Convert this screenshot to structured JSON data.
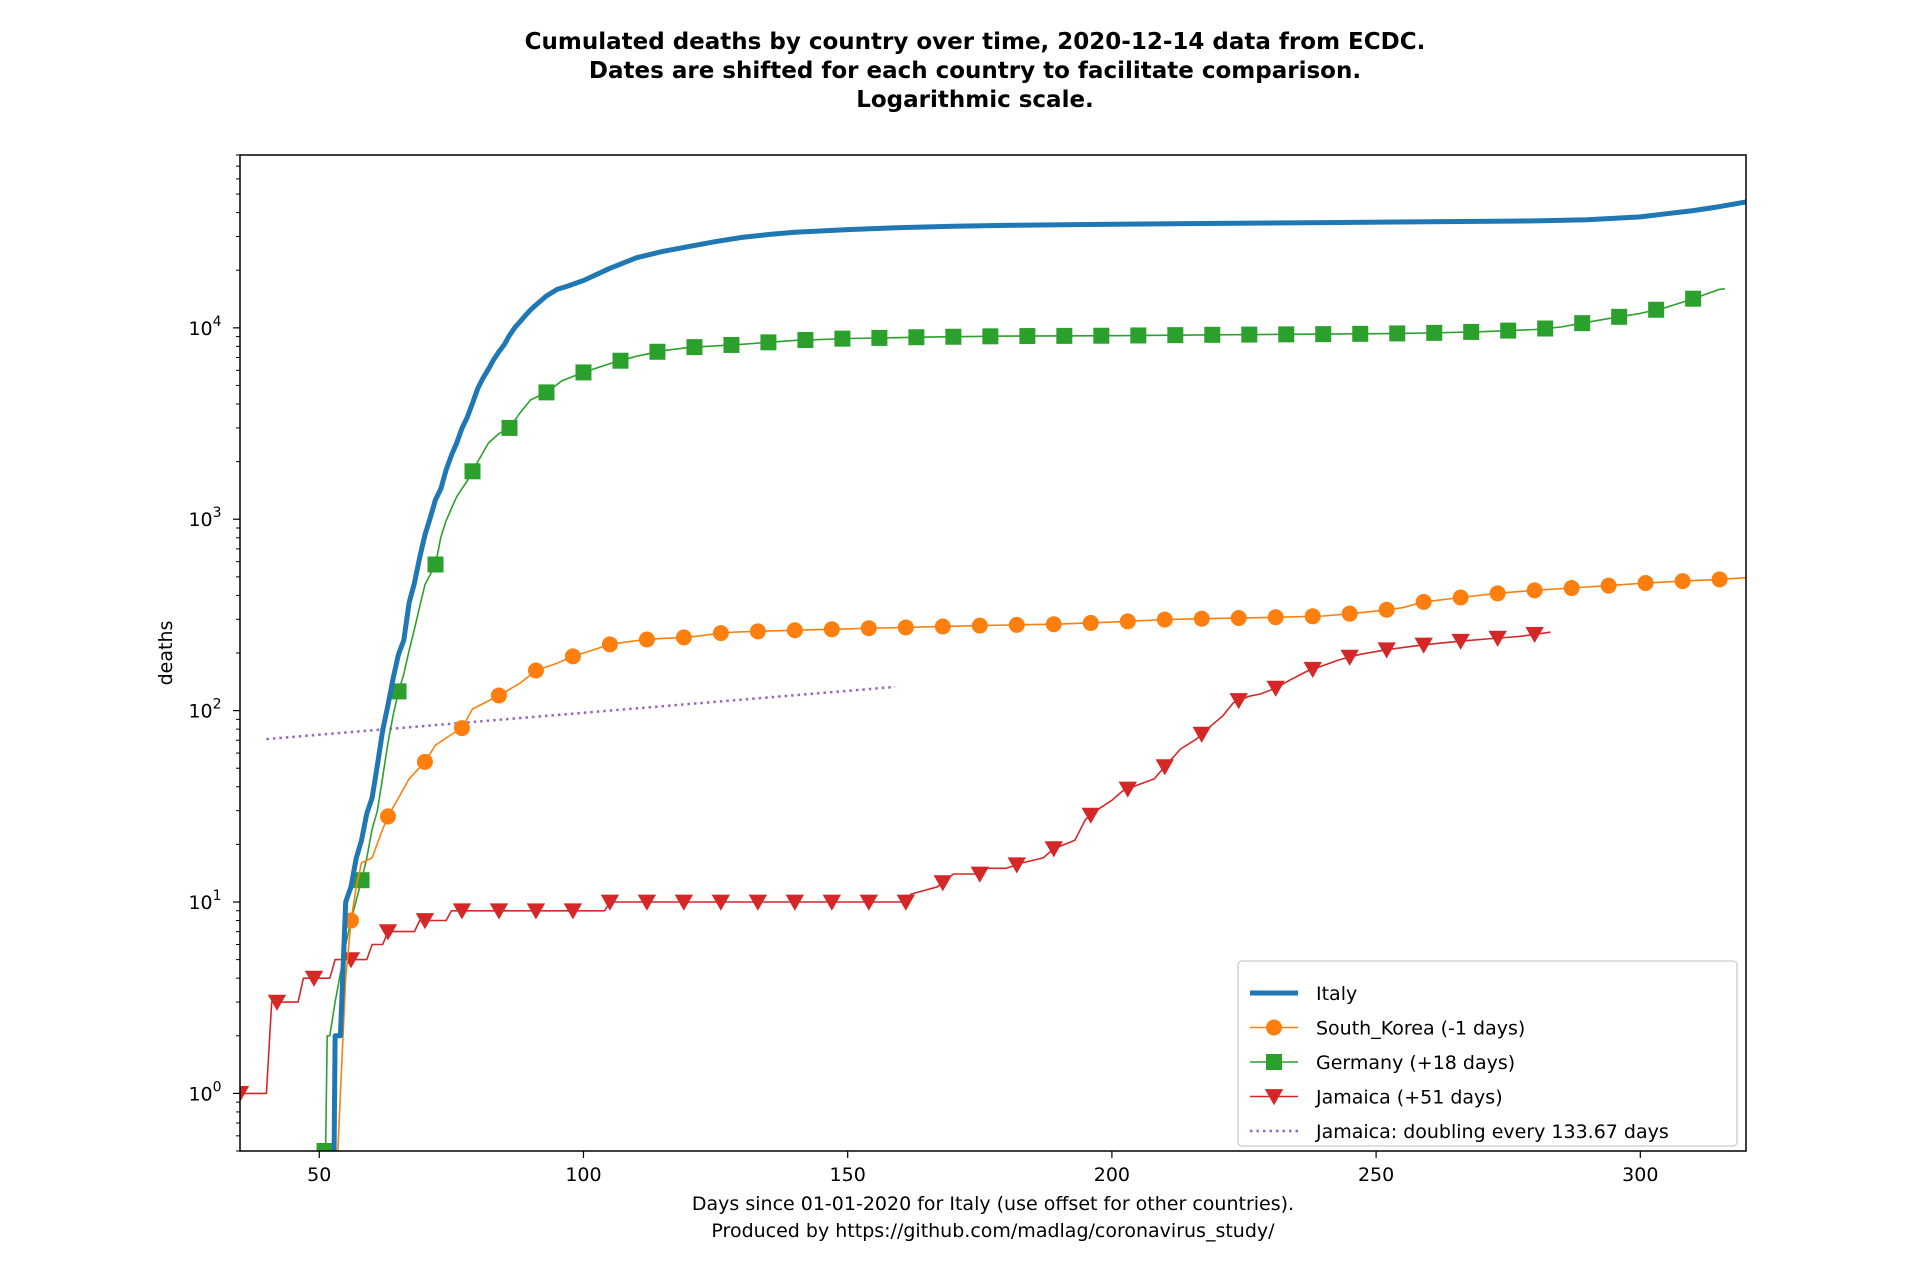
{
  "chart_data": {
    "type": "line",
    "title_lines": [
      "Cumulated deaths by country over time, 2020-12-14 data from ECDC.",
      "Dates are shifted for each country to facilitate comparison.",
      "Logarithmic scale."
    ],
    "xlabel_lines": [
      "Days since 01-01-2020 for Italy (use offset for other countries).",
      "Produced by https://github.com/madlag/coronavirus_study/"
    ],
    "ylabel": "deaths",
    "y_scale": "log",
    "xlim": [
      35,
      320
    ],
    "ylim": [
      0.5,
      80000
    ],
    "x_ticks": [
      50,
      100,
      150,
      200,
      250,
      300
    ],
    "y_ticks": [
      {
        "value": 1,
        "base": "10",
        "exp": "0"
      },
      {
        "value": 10,
        "base": "10",
        "exp": "1"
      },
      {
        "value": 100,
        "base": "10",
        "exp": "2"
      },
      {
        "value": 1000,
        "base": "10",
        "exp": "3"
      },
      {
        "value": 10000,
        "base": "10",
        "exp": "4"
      }
    ],
    "grid": false,
    "legend_position": "lower-right",
    "series": [
      {
        "name": "Italy",
        "color": "#1f77b4",
        "style": "thick-line",
        "marker": "none",
        "points": [
          [
            52.8,
            0.5
          ],
          [
            53,
            2
          ],
          [
            54,
            2
          ],
          [
            55,
            10
          ],
          [
            56,
            12
          ],
          [
            57,
            17
          ],
          [
            58,
            21
          ],
          [
            59,
            29
          ],
          [
            60,
            35
          ],
          [
            61,
            52
          ],
          [
            62,
            79
          ],
          [
            63,
            107
          ],
          [
            64,
            148
          ],
          [
            65,
            197
          ],
          [
            66,
            233
          ],
          [
            67,
            366
          ],
          [
            68,
            463
          ],
          [
            69,
            631
          ],
          [
            70,
            827
          ],
          [
            71,
            1016
          ],
          [
            72,
            1266
          ],
          [
            73,
            1441
          ],
          [
            74,
            1809
          ],
          [
            75,
            2158
          ],
          [
            76,
            2503
          ],
          [
            77,
            2978
          ],
          [
            78,
            3405
          ],
          [
            79,
            4032
          ],
          [
            80,
            4825
          ],
          [
            81,
            5476
          ],
          [
            82,
            6077
          ],
          [
            83,
            6820
          ],
          [
            84,
            7503
          ],
          [
            85,
            8165
          ],
          [
            86,
            9134
          ],
          [
            87,
            10023
          ],
          [
            88,
            10779
          ],
          [
            89,
            11591
          ],
          [
            90,
            12428
          ],
          [
            91,
            13155
          ],
          [
            93,
            14681
          ],
          [
            95,
            15887
          ],
          [
            97,
            16523
          ],
          [
            100,
            17669
          ],
          [
            105,
            20465
          ],
          [
            110,
            23227
          ],
          [
            115,
            25085
          ],
          [
            120,
            26644
          ],
          [
            125,
            28236
          ],
          [
            130,
            29684
          ],
          [
            135,
            30739
          ],
          [
            140,
            31610
          ],
          [
            150,
            32616
          ],
          [
            160,
            33415
          ],
          [
            170,
            33964
          ],
          [
            180,
            34301
          ],
          [
            200,
            34744
          ],
          [
            220,
            35141
          ],
          [
            240,
            35470
          ],
          [
            260,
            35800
          ],
          [
            280,
            36200
          ],
          [
            290,
            36700
          ],
          [
            300,
            38000
          ],
          [
            305,
            39500
          ],
          [
            310,
            41000
          ],
          [
            315,
            43000
          ],
          [
            320,
            45500
          ]
        ]
      },
      {
        "name": "South_Korea (-1 days)",
        "color": "#ff7f0e",
        "style": "line",
        "marker": "circle",
        "points": [
          [
            53.5,
            0.5
          ],
          [
            54,
            1
          ],
          [
            55,
            4
          ],
          [
            56,
            8
          ],
          [
            57,
            12
          ],
          [
            58,
            16
          ],
          [
            60,
            17
          ],
          [
            62,
            24
          ],
          [
            63,
            28
          ],
          [
            65,
            35
          ],
          [
            67,
            44
          ],
          [
            70,
            54
          ],
          [
            72,
            66
          ],
          [
            75,
            75
          ],
          [
            77,
            81
          ],
          [
            79,
            102
          ],
          [
            84,
            120
          ],
          [
            88,
            139
          ],
          [
            91,
            162
          ],
          [
            95,
            177
          ],
          [
            98,
            192
          ],
          [
            102,
            208
          ],
          [
            105,
            222
          ],
          [
            110,
            232
          ],
          [
            113,
            237
          ],
          [
            120,
            242
          ],
          [
            125,
            252
          ],
          [
            127,
            256
          ],
          [
            130,
            258
          ],
          [
            134,
            260
          ],
          [
            140,
            263
          ],
          [
            147,
            266
          ],
          [
            155,
            270
          ],
          [
            161,
            272
          ],
          [
            170,
            276
          ],
          [
            180,
            280
          ],
          [
            190,
            283
          ],
          [
            200,
            290
          ],
          [
            210,
            299
          ],
          [
            217,
            302
          ],
          [
            225,
            305
          ],
          [
            230,
            307
          ],
          [
            240,
            312
          ],
          [
            245,
            321
          ],
          [
            250,
            331
          ],
          [
            255,
            345
          ],
          [
            259,
            370
          ],
          [
            266,
            390
          ],
          [
            273,
            410
          ],
          [
            280,
            425
          ],
          [
            287,
            437
          ],
          [
            294,
            450
          ],
          [
            301,
            464
          ],
          [
            308,
            475
          ],
          [
            315,
            485
          ],
          [
            320,
            495
          ]
        ],
        "marker_x": [
          56,
          63,
          70,
          77,
          84,
          91,
          98,
          105,
          112,
          119,
          126,
          133,
          140,
          147,
          154,
          161,
          168,
          175,
          182,
          189,
          196,
          203,
          210,
          217,
          224,
          231,
          238,
          245,
          252,
          259,
          266,
          273,
          280,
          287,
          294,
          301,
          308,
          315
        ]
      },
      {
        "name": "Germany (+18 days)",
        "color": "#2ca02c",
        "style": "line",
        "marker": "square",
        "points": [
          [
            51.2,
            0.5
          ],
          [
            51.5,
            2
          ],
          [
            52,
            2
          ],
          [
            53,
            3
          ],
          [
            55,
            6
          ],
          [
            56,
            8
          ],
          [
            58,
            13
          ],
          [
            59,
            17
          ],
          [
            60,
            24
          ],
          [
            61,
            30
          ],
          [
            62,
            45
          ],
          [
            63,
            68
          ],
          [
            64,
            95
          ],
          [
            65,
            126
          ],
          [
            66,
            155
          ],
          [
            67,
            206
          ],
          [
            68,
            266
          ],
          [
            69,
            350
          ],
          [
            70,
            454
          ],
          [
            72,
            580
          ],
          [
            73,
            805
          ],
          [
            74,
            981
          ],
          [
            75,
            1138
          ],
          [
            76,
            1311
          ],
          [
            77,
            1442
          ],
          [
            78,
            1584
          ],
          [
            80,
            2000
          ],
          [
            82,
            2500
          ],
          [
            84,
            2800
          ],
          [
            86,
            3000
          ],
          [
            88,
            3600
          ],
          [
            90,
            4200
          ],
          [
            93,
            4600
          ],
          [
            96,
            5300
          ],
          [
            100,
            5850
          ],
          [
            105,
            6500
          ],
          [
            110,
            7100
          ],
          [
            115,
            7600
          ],
          [
            120,
            7900
          ],
          [
            130,
            8200
          ],
          [
            140,
            8600
          ],
          [
            150,
            8800
          ],
          [
            165,
            8950
          ],
          [
            180,
            9050
          ],
          [
            200,
            9100
          ],
          [
            220,
            9200
          ],
          [
            240,
            9270
          ],
          [
            250,
            9320
          ],
          [
            260,
            9400
          ],
          [
            270,
            9550
          ],
          [
            280,
            9800
          ],
          [
            285,
            10100
          ],
          [
            290,
            10700
          ],
          [
            295,
            11300
          ],
          [
            300,
            11900
          ],
          [
            305,
            12800
          ],
          [
            310,
            14200
          ],
          [
            315,
            15900
          ],
          [
            316,
            16000
          ]
        ],
        "marker_x": [
          51,
          58,
          65,
          72,
          79,
          86,
          93,
          100,
          107,
          114,
          121,
          128,
          135,
          142,
          149,
          156,
          163,
          170,
          177,
          184,
          191,
          198,
          205,
          212,
          219,
          226,
          233,
          240,
          247,
          254,
          261,
          268,
          275,
          282,
          289,
          296,
          303,
          310
        ]
      },
      {
        "name": "Jamaica (+51 days)",
        "color": "#d62728",
        "style": "step",
        "marker": "triangle-down",
        "points": [
          [
            35,
            1
          ],
          [
            40,
            1
          ],
          [
            41,
            3
          ],
          [
            46,
            3
          ],
          [
            47,
            4
          ],
          [
            52,
            4
          ],
          [
            53,
            5
          ],
          [
            59,
            5
          ],
          [
            60,
            6
          ],
          [
            62,
            6
          ],
          [
            63,
            7
          ],
          [
            68,
            7
          ],
          [
            69,
            8
          ],
          [
            74,
            8
          ],
          [
            75,
            9
          ],
          [
            104,
            9
          ],
          [
            105,
            10
          ],
          [
            160,
            10
          ],
          [
            161,
            10
          ],
          [
            162,
            11
          ],
          [
            167,
            12
          ],
          [
            170,
            14
          ],
          [
            175,
            14
          ],
          [
            176,
            15
          ],
          [
            180,
            15
          ],
          [
            183,
            16
          ],
          [
            187,
            17
          ],
          [
            189,
            19
          ],
          [
            193,
            21
          ],
          [
            195,
            27
          ],
          [
            197,
            30
          ],
          [
            200,
            34
          ],
          [
            202,
            38
          ],
          [
            205,
            41
          ],
          [
            208,
            44
          ],
          [
            210,
            51
          ],
          [
            213,
            63
          ],
          [
            216,
            71
          ],
          [
            218,
            80
          ],
          [
            221,
            94
          ],
          [
            223,
            110
          ],
          [
            226,
            119
          ],
          [
            228,
            122
          ],
          [
            231,
            131
          ],
          [
            234,
            146
          ],
          [
            237,
            161
          ],
          [
            240,
            172
          ],
          [
            243,
            184
          ],
          [
            247,
            197
          ],
          [
            252,
            208
          ],
          [
            257,
            217
          ],
          [
            262,
            225
          ],
          [
            267,
            232
          ],
          [
            272,
            238
          ],
          [
            277,
            244
          ],
          [
            283,
            257
          ]
        ],
        "marker_x": [
          35,
          42,
          49,
          56,
          63,
          70,
          77,
          84,
          91,
          98,
          105,
          112,
          119,
          126,
          133,
          140,
          147,
          154,
          161,
          168,
          175,
          182,
          189,
          196,
          203,
          210,
          217,
          224,
          231,
          238,
          245,
          252,
          259,
          266,
          273,
          280
        ]
      },
      {
        "name": "Jamaica: doubling every 133.67 days",
        "color": "#9467bd",
        "style": "dotted",
        "marker": "none",
        "points": [
          [
            40,
            71
          ],
          [
            159,
            133
          ]
        ]
      }
    ]
  }
}
